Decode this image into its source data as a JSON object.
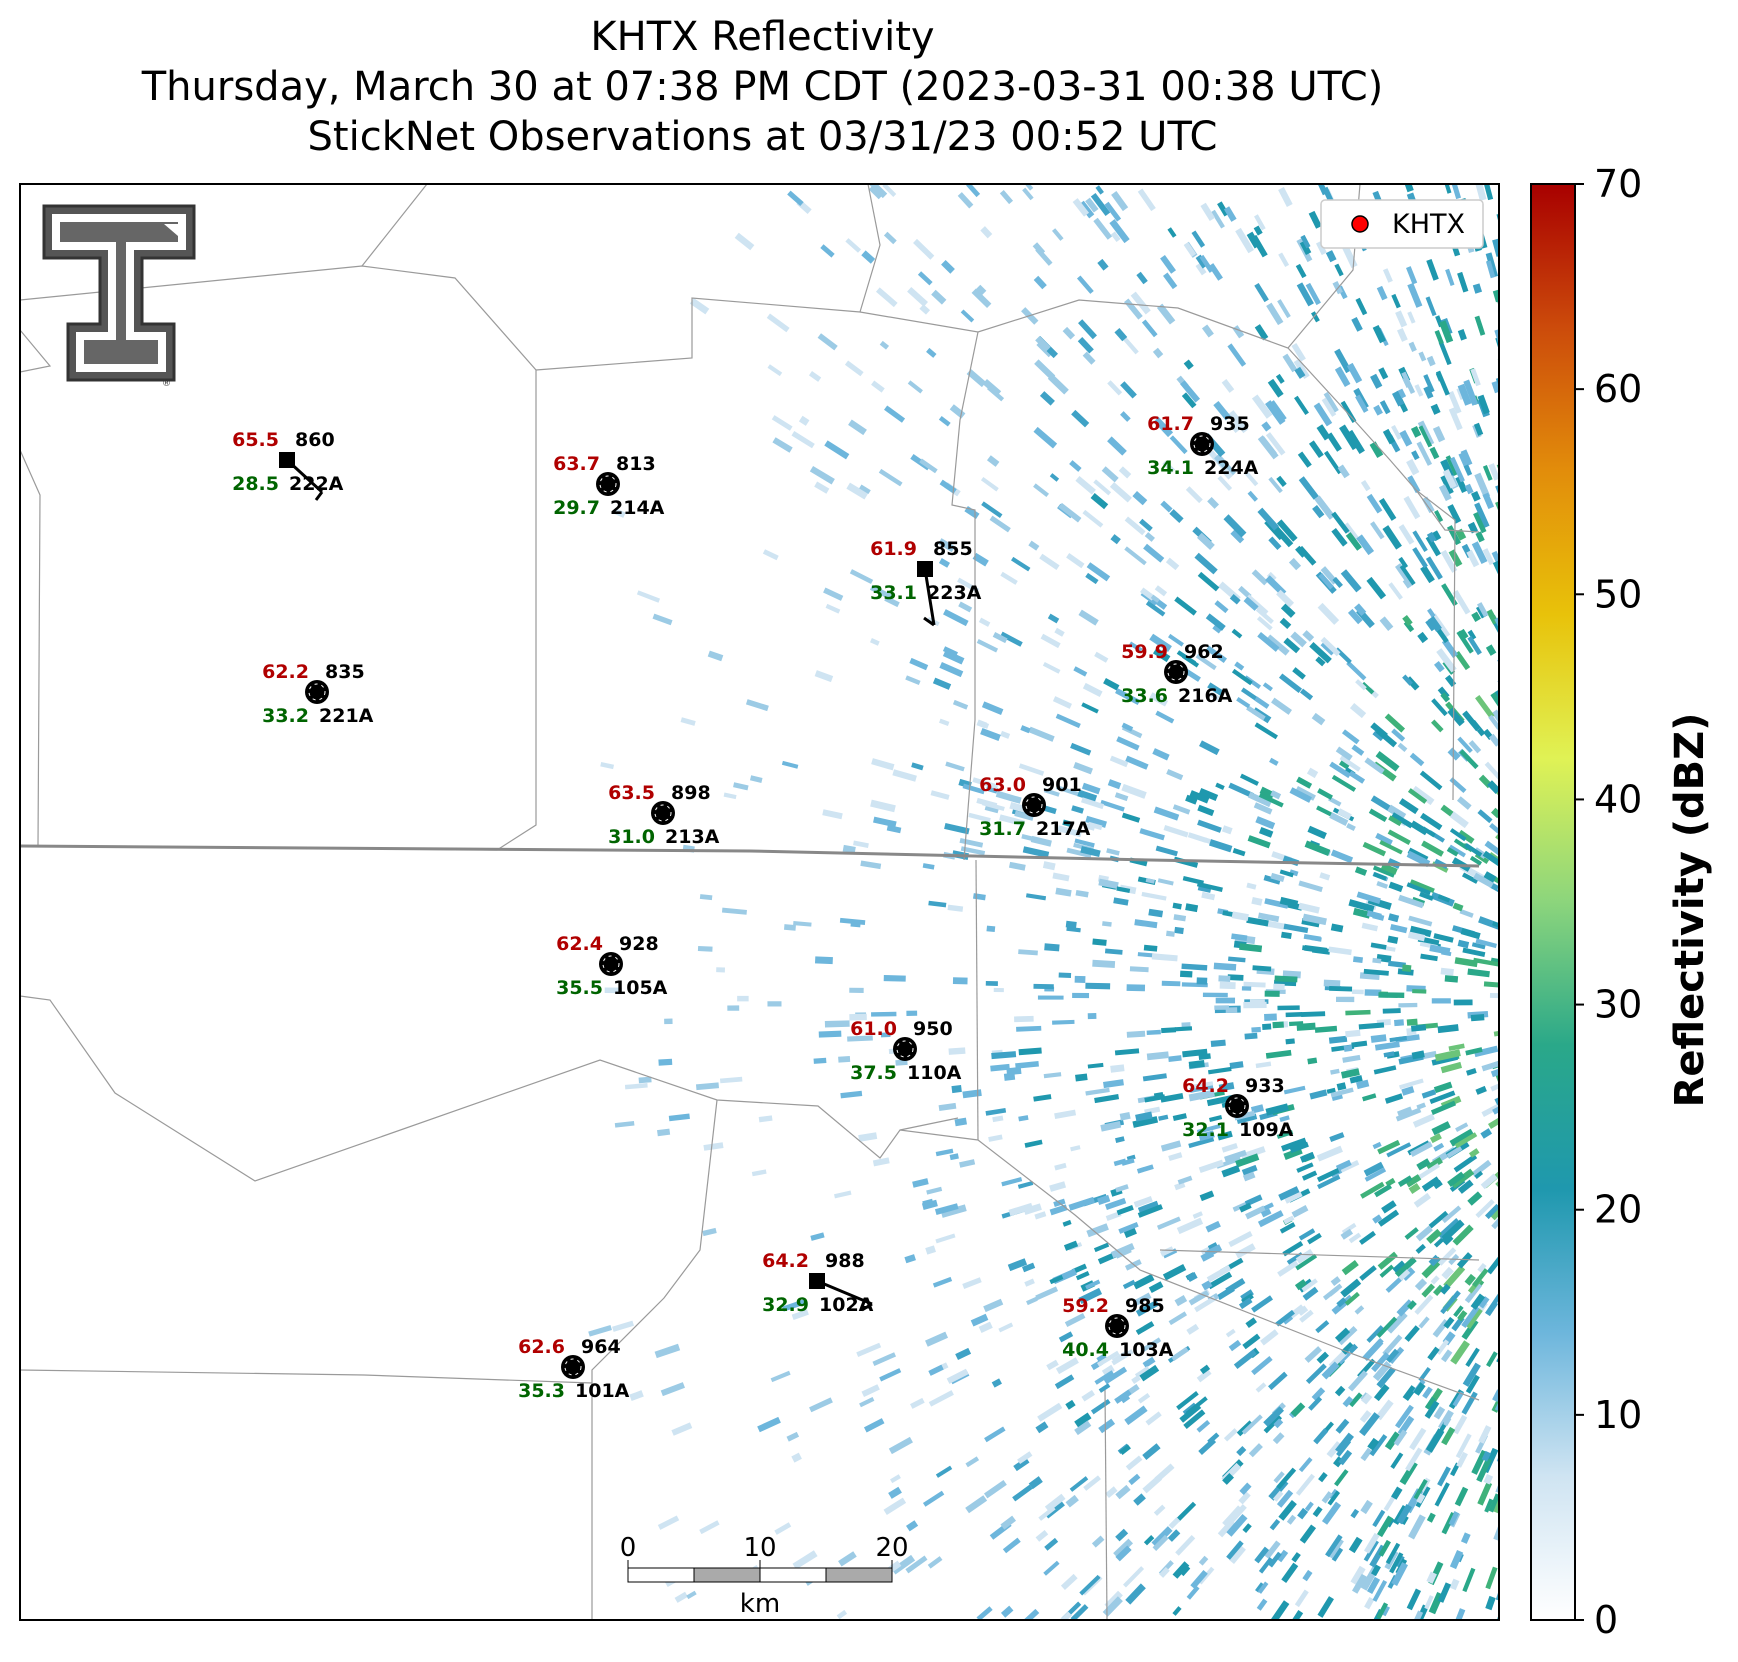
{
  "title": {
    "line1": "KHTX Reflectivity",
    "line2": "Thursday, March 30 at 07:38 PM CDT (2023-03-31 00:38 UTC)",
    "line3": "StickNet Observations at 03/31/23 00:52 UTC"
  },
  "legend": {
    "label": "KHTX",
    "marker_color": "#ff0000"
  },
  "colorbar": {
    "label": "Reflectivity (dBZ)",
    "min": 0,
    "max": 70,
    "ticks": [
      "0",
      "10",
      "20",
      "30",
      "40",
      "50",
      "60",
      "70"
    ],
    "colors": [
      "#ffffff",
      "#cfe4f2",
      "#6db6dc",
      "#1f98ae",
      "#2aa889",
      "#8cd57c",
      "#e0f255",
      "#e8c20a",
      "#e28d0b",
      "#cc4b0b",
      "#a80000"
    ]
  },
  "scalebar": {
    "labels": [
      "0",
      "10",
      "20"
    ],
    "unit": "km"
  },
  "stations": [
    {
      "id": "222A",
      "temp": "65.5",
      "dew": "28.5",
      "pres": "860",
      "marker": "square"
    },
    {
      "id": "214A",
      "temp": "63.7",
      "dew": "29.7",
      "pres": "813",
      "marker": "circle"
    },
    {
      "id": "224A",
      "temp": "61.7",
      "dew": "34.1",
      "pres": "935",
      "marker": "circle"
    },
    {
      "id": "223A",
      "temp": "61.9",
      "dew": "33.1",
      "pres": "855",
      "marker": "square"
    },
    {
      "id": "221A",
      "temp": "62.2",
      "dew": "33.2",
      "pres": "835",
      "marker": "circle"
    },
    {
      "id": "216A",
      "temp": "59.9",
      "dew": "33.6",
      "pres": "962",
      "marker": "circle"
    },
    {
      "id": "213A",
      "temp": "63.5",
      "dew": "31.0",
      "pres": "898",
      "marker": "circle"
    },
    {
      "id": "217A",
      "temp": "63.0",
      "dew": "31.7",
      "pres": "901",
      "marker": "circle"
    },
    {
      "id": "105A",
      "temp": "62.4",
      "dew": "35.5",
      "pres": "928",
      "marker": "circle"
    },
    {
      "id": "110A",
      "temp": "61.0",
      "dew": "37.5",
      "pres": "950",
      "marker": "circle"
    },
    {
      "id": "109A",
      "temp": "64.2",
      "dew": "32.1",
      "pres": "933",
      "marker": "circle"
    },
    {
      "id": "102A",
      "temp": "64.2",
      "dew": "32.9",
      "pres": "988",
      "marker": "square"
    },
    {
      "id": "103A",
      "temp": "59.2",
      "dew": "40.4",
      "pres": "985",
      "marker": "circle"
    },
    {
      "id": "101A",
      "temp": "62.6",
      "dew": "35.3",
      "pres": "964",
      "marker": "circle"
    }
  ],
  "colors": {
    "temp": "#b00000",
    "dew": "#006400",
    "label": "#000000"
  }
}
